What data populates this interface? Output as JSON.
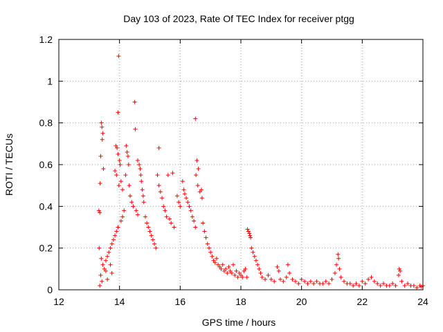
{
  "chart_data": {
    "type": "scatter",
    "title": "Day 103 of 2023, Rate Of TEC Index for receiver ptgg",
    "xlabel": "GPS time / hours",
    "ylabel": "ROTI / TECUs",
    "xlim": [
      12,
      24
    ],
    "ylim": [
      0,
      1.2
    ],
    "xticks": [
      12,
      14,
      16,
      18,
      20,
      22,
      24
    ],
    "yticks": [
      0,
      0.2,
      0.4,
      0.6,
      0.8,
      1,
      1.2
    ],
    "xtick_labels": [
      "12",
      "14",
      "16",
      "18",
      "20",
      "22",
      "24"
    ],
    "ytick_labels": [
      "0",
      "0.2",
      "0.4",
      "0.6",
      "0.8",
      "1",
      "1.2"
    ],
    "grid": true,
    "marker": "+",
    "color": "#ff0000",
    "series": [
      {
        "name": "ROTI",
        "points": [
          [
            13.4,
            0.8
          ],
          [
            13.42,
            0.78
          ],
          [
            13.45,
            0.75
          ],
          [
            13.43,
            0.72
          ],
          [
            13.38,
            0.64
          ],
          [
            13.47,
            0.58
          ],
          [
            13.36,
            0.51
          ],
          [
            13.32,
            0.38
          ],
          [
            13.35,
            0.37
          ],
          [
            13.33,
            0.2
          ],
          [
            13.4,
            0.15
          ],
          [
            13.45,
            0.12
          ],
          [
            13.5,
            0.1
          ],
          [
            13.38,
            0.07
          ],
          [
            13.42,
            0.04
          ],
          [
            13.35,
            0.02
          ],
          [
            13.55,
            0.09
          ],
          [
            13.6,
            0.05
          ],
          [
            13.7,
            0.12
          ],
          [
            13.75,
            0.08
          ],
          [
            13.97,
            1.12
          ],
          [
            13.95,
            0.85
          ],
          [
            14.5,
            0.9
          ],
          [
            14.52,
            0.77
          ],
          [
            16.5,
            0.82
          ],
          [
            15.3,
            0.68
          ],
          [
            13.88,
            0.69
          ],
          [
            13.92,
            0.68
          ],
          [
            13.95,
            0.65
          ],
          [
            14.0,
            0.62
          ],
          [
            14.02,
            0.6
          ],
          [
            13.85,
            0.57
          ],
          [
            13.9,
            0.55
          ],
          [
            14.05,
            0.52
          ],
          [
            13.98,
            0.5
          ],
          [
            14.1,
            0.48
          ],
          [
            14.22,
            0.69
          ],
          [
            14.25,
            0.66
          ],
          [
            14.28,
            0.64
          ],
          [
            14.3,
            0.6
          ],
          [
            14.2,
            0.55
          ],
          [
            14.32,
            0.5
          ],
          [
            14.35,
            0.45
          ],
          [
            14.6,
            0.62
          ],
          [
            14.65,
            0.6
          ],
          [
            14.68,
            0.58
          ],
          [
            14.7,
            0.55
          ],
          [
            14.72,
            0.52
          ],
          [
            14.75,
            0.48
          ],
          [
            14.78,
            0.45
          ],
          [
            14.8,
            0.42
          ],
          [
            15.25,
            0.55
          ],
          [
            15.3,
            0.5
          ],
          [
            15.35,
            0.47
          ],
          [
            15.4,
            0.44
          ],
          [
            15.6,
            0.55
          ],
          [
            15.75,
            0.56
          ],
          [
            16.55,
            0.62
          ],
          [
            16.6,
            0.58
          ],
          [
            16.52,
            0.55
          ],
          [
            16.58,
            0.5
          ],
          [
            16.65,
            0.47
          ],
          [
            16.7,
            0.48
          ],
          [
            16.72,
            0.44
          ],
          [
            16.08,
            0.52
          ],
          [
            16.12,
            0.48
          ],
          [
            16.15,
            0.46
          ],
          [
            16.2,
            0.44
          ],
          [
            16.25,
            0.42
          ],
          [
            16.3,
            0.4
          ],
          [
            16.35,
            0.38
          ],
          [
            15.9,
            0.45
          ],
          [
            15.95,
            0.42
          ],
          [
            16.0,
            0.4
          ],
          [
            15.45,
            0.4
          ],
          [
            15.5,
            0.38
          ],
          [
            15.55,
            0.35
          ],
          [
            15.65,
            0.34
          ],
          [
            15.7,
            0.32
          ],
          [
            15.8,
            0.3
          ],
          [
            14.4,
            0.42
          ],
          [
            14.45,
            0.4
          ],
          [
            14.55,
            0.38
          ],
          [
            14.6,
            0.36
          ],
          [
            14.15,
            0.38
          ],
          [
            14.1,
            0.35
          ],
          [
            14.05,
            0.33
          ],
          [
            13.95,
            0.3
          ],
          [
            13.9,
            0.28
          ],
          [
            13.85,
            0.26
          ],
          [
            13.8,
            0.24
          ],
          [
            13.75,
            0.22
          ],
          [
            13.7,
            0.2
          ],
          [
            13.65,
            0.18
          ],
          [
            13.6,
            0.16
          ],
          [
            13.55,
            0.14
          ],
          [
            14.85,
            0.35
          ],
          [
            14.9,
            0.32
          ],
          [
            14.95,
            0.3
          ],
          [
            15.0,
            0.28
          ],
          [
            15.05,
            0.26
          ],
          [
            15.1,
            0.24
          ],
          [
            15.15,
            0.22
          ],
          [
            15.2,
            0.2
          ],
          [
            16.4,
            0.35
          ],
          [
            16.45,
            0.33
          ],
          [
            16.5,
            0.3
          ],
          [
            16.75,
            0.32
          ],
          [
            16.8,
            0.28
          ],
          [
            16.85,
            0.25
          ],
          [
            16.9,
            0.22
          ],
          [
            16.95,
            0.2
          ],
          [
            17.0,
            0.18
          ],
          [
            17.05,
            0.16
          ],
          [
            17.1,
            0.14
          ],
          [
            17.15,
            0.13
          ],
          [
            17.2,
            0.15
          ],
          [
            17.25,
            0.12
          ],
          [
            17.3,
            0.11
          ],
          [
            17.35,
            0.1
          ],
          [
            17.4,
            0.12
          ],
          [
            17.45,
            0.09
          ],
          [
            17.5,
            0.1
          ],
          [
            17.55,
            0.08
          ],
          [
            17.6,
            0.11
          ],
          [
            17.65,
            0.09
          ],
          [
            17.7,
            0.08
          ],
          [
            17.75,
            0.12
          ],
          [
            17.8,
            0.07
          ],
          [
            17.85,
            0.09
          ],
          [
            17.9,
            0.06
          ],
          [
            17.95,
            0.08
          ],
          [
            18.0,
            0.07
          ],
          [
            18.05,
            0.06
          ],
          [
            18.1,
            0.09
          ],
          [
            18.15,
            0.1
          ],
          [
            18.2,
            0.06
          ],
          [
            18.25,
            0.28
          ],
          [
            18.28,
            0.27
          ],
          [
            18.3,
            0.26
          ],
          [
            18.32,
            0.25
          ],
          [
            18.22,
            0.29
          ],
          [
            18.35,
            0.2
          ],
          [
            18.4,
            0.18
          ],
          [
            18.45,
            0.16
          ],
          [
            18.5,
            0.14
          ],
          [
            18.55,
            0.12
          ],
          [
            18.6,
            0.1
          ],
          [
            18.65,
            0.08
          ],
          [
            18.7,
            0.06
          ],
          [
            18.8,
            0.05
          ],
          [
            18.9,
            0.07
          ],
          [
            19.0,
            0.05
          ],
          [
            19.1,
            0.04
          ],
          [
            19.2,
            0.11
          ],
          [
            19.25,
            0.09
          ],
          [
            19.3,
            0.05
          ],
          [
            19.4,
            0.04
          ],
          [
            19.5,
            0.06
          ],
          [
            19.55,
            0.12
          ],
          [
            19.6,
            0.08
          ],
          [
            19.7,
            0.05
          ],
          [
            19.8,
            0.04
          ],
          [
            19.9,
            0.03
          ],
          [
            20.0,
            0.05
          ],
          [
            20.1,
            0.04
          ],
          [
            20.2,
            0.03
          ],
          [
            20.3,
            0.04
          ],
          [
            20.4,
            0.03
          ],
          [
            20.5,
            0.04
          ],
          [
            20.6,
            0.03
          ],
          [
            20.7,
            0.03
          ],
          [
            20.8,
            0.04
          ],
          [
            20.9,
            0.03
          ],
          [
            21.0,
            0.05
          ],
          [
            21.1,
            0.08
          ],
          [
            21.15,
            0.12
          ],
          [
            21.2,
            0.17
          ],
          [
            21.22,
            0.15
          ],
          [
            21.25,
            0.1
          ],
          [
            21.3,
            0.06
          ],
          [
            21.4,
            0.04
          ],
          [
            21.5,
            0.03
          ],
          [
            21.6,
            0.03
          ],
          [
            21.7,
            0.02
          ],
          [
            21.8,
            0.03
          ],
          [
            21.9,
            0.02
          ],
          [
            22.0,
            0.04
          ],
          [
            22.1,
            0.03
          ],
          [
            22.2,
            0.05
          ],
          [
            22.3,
            0.06
          ],
          [
            22.4,
            0.04
          ],
          [
            22.5,
            0.03
          ],
          [
            22.6,
            0.02
          ],
          [
            22.7,
            0.03
          ],
          [
            22.8,
            0.02
          ],
          [
            22.9,
            0.02
          ],
          [
            23.0,
            0.03
          ],
          [
            23.1,
            0.02
          ],
          [
            23.2,
            0.07
          ],
          [
            23.22,
            0.1
          ],
          [
            23.25,
            0.09
          ],
          [
            23.3,
            0.04
          ],
          [
            23.4,
            0.02
          ],
          [
            23.5,
            0.03
          ],
          [
            23.6,
            0.02
          ],
          [
            23.7,
            0.02
          ],
          [
            23.8,
            0.01
          ],
          [
            23.9,
            0.02
          ],
          [
            23.95,
            0.015
          ],
          [
            24.0,
            0.02
          ]
        ]
      }
    ]
  }
}
